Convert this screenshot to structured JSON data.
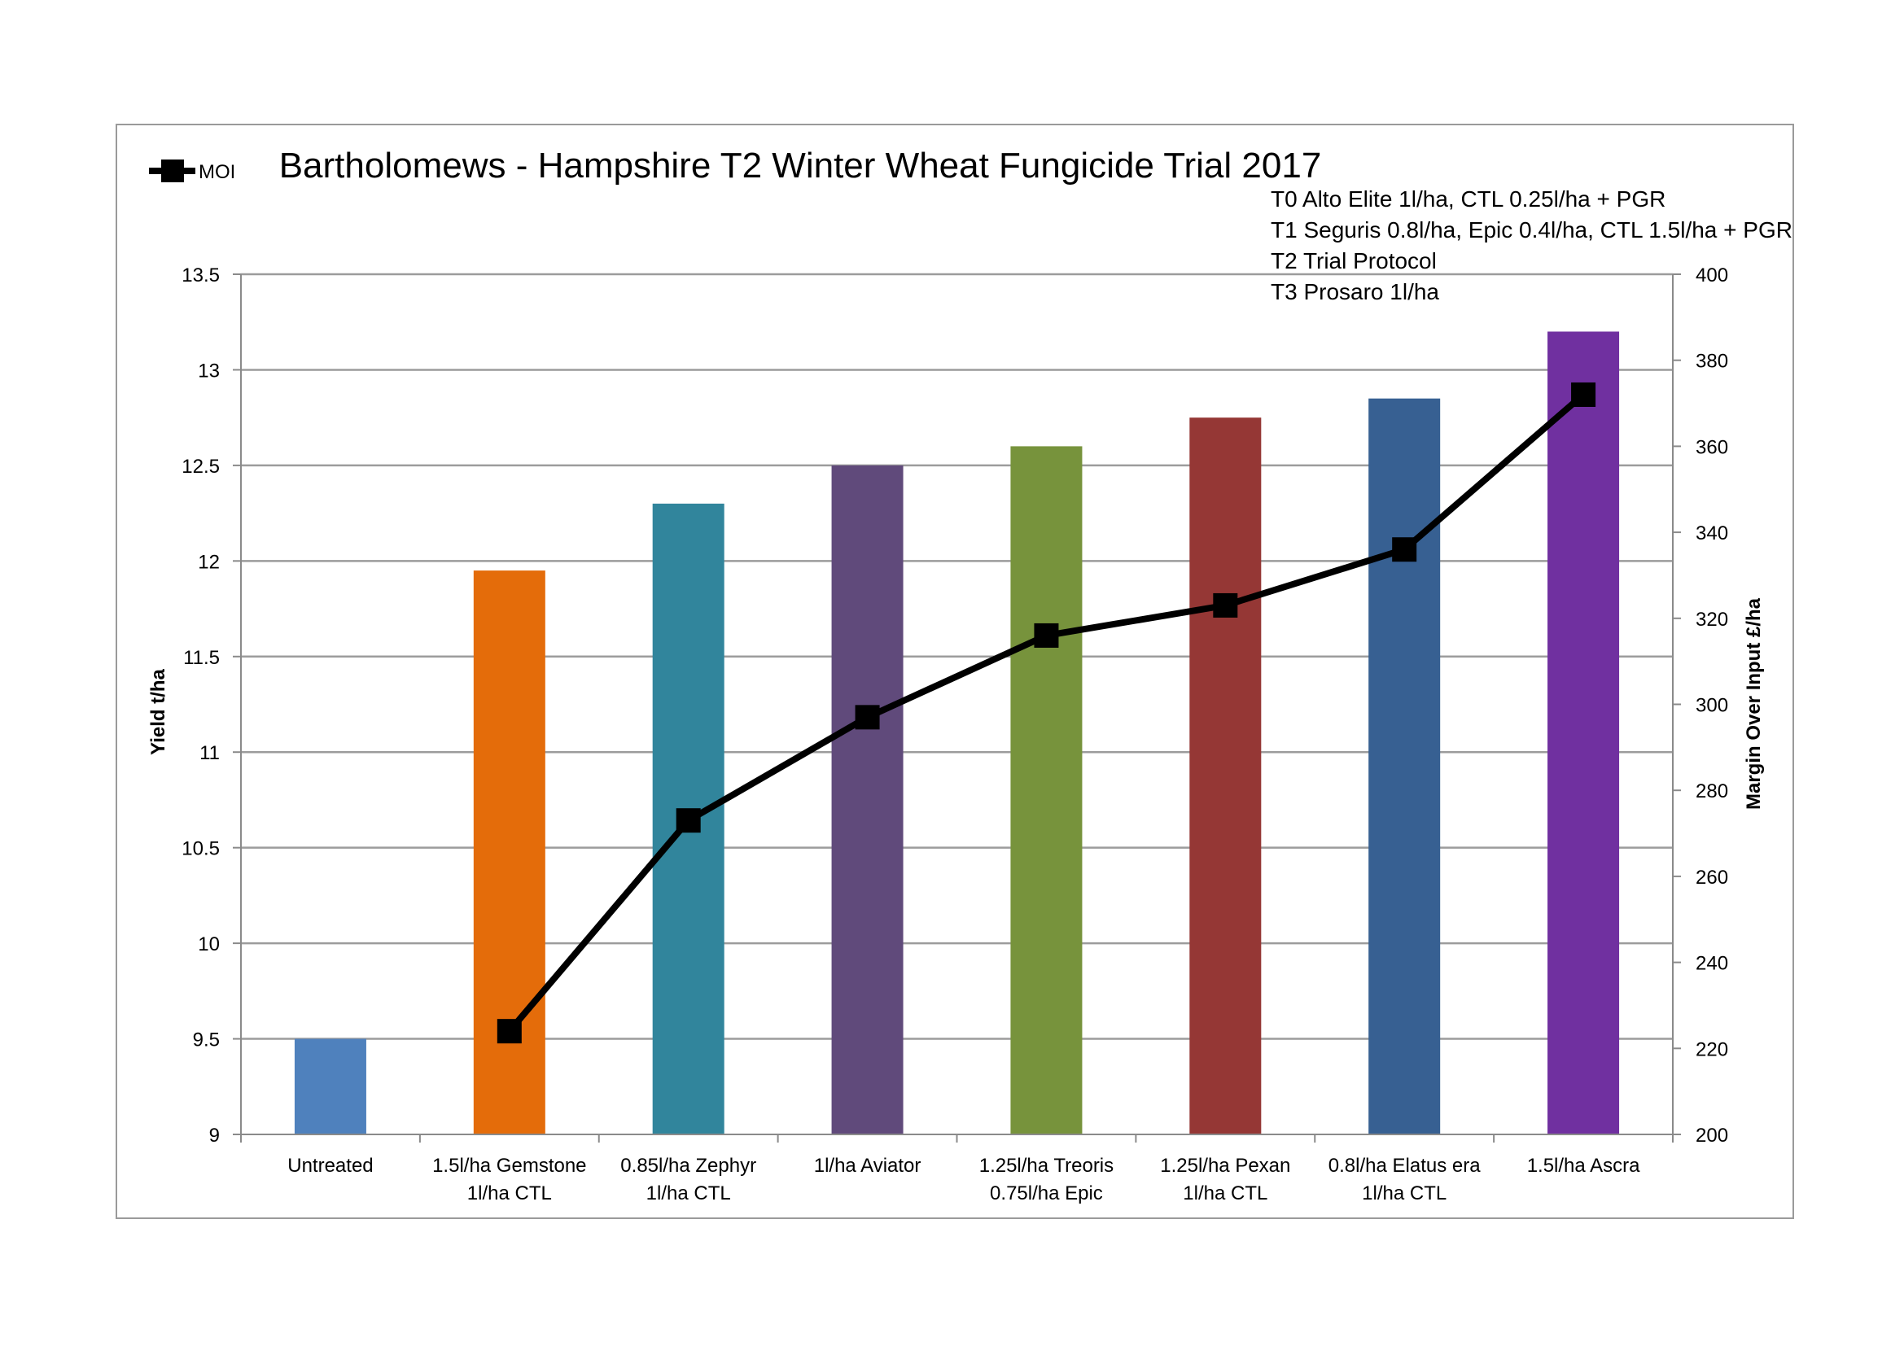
{
  "chart_data": {
    "type": "bar",
    "title": "Bartholomews - Hampshire T2 Winter Wheat Fungicide Trial 2017",
    "subtitle_lines": [
      "T0 Alto Elite 1l/ha, CTL 0.25l/ha + PGR",
      "T1 Seguris 0.8l/ha, Epic 0.4l/ha, CTL 1.5l/ha + PGR",
      "T2 Trial Protocol",
      "T3 Prosaro 1l/ha"
    ],
    "categories": [
      [
        "Untreated"
      ],
      [
        "1.5l/ha Gemstone",
        "1l/ha CTL"
      ],
      [
        "0.85l/ha Zephyr",
        "1l/ha CTL"
      ],
      [
        "1l/ha Aviator"
      ],
      [
        "1.25l/ha Treoris",
        "0.75l/ha Epic"
      ],
      [
        "1.25l/ha Pexan",
        "1l/ha CTL"
      ],
      [
        "0.8l/ha Elatus era",
        "1l/ha CTL"
      ],
      [
        "1.5l/ha Ascra"
      ]
    ],
    "bar_values": [
      9.5,
      11.95,
      12.3,
      12.5,
      12.6,
      12.75,
      12.85,
      13.2
    ],
    "bar_colors": [
      "#4f81bd",
      "#e46c0a",
      "#31859c",
      "#604a7b",
      "#77933c",
      "#953735",
      "#376092",
      "#7030a0"
    ],
    "line_series": {
      "name": "MOI",
      "values": [
        null,
        224,
        273,
        297,
        316,
        323,
        336,
        372
      ],
      "color": "#000000"
    },
    "ylabel": "Yield t/ha",
    "y2label": "Margin Over Input £/ha",
    "ylim": [
      9,
      13.5
    ],
    "yticks": [
      9,
      9.5,
      10,
      10.5,
      11,
      11.5,
      12,
      12.5,
      13,
      13.5
    ],
    "y2lim": [
      200,
      400
    ],
    "y2ticks": [
      200,
      220,
      240,
      260,
      280,
      300,
      320,
      340,
      360,
      380,
      400
    ],
    "grid": true,
    "legend_position": "top-left"
  }
}
